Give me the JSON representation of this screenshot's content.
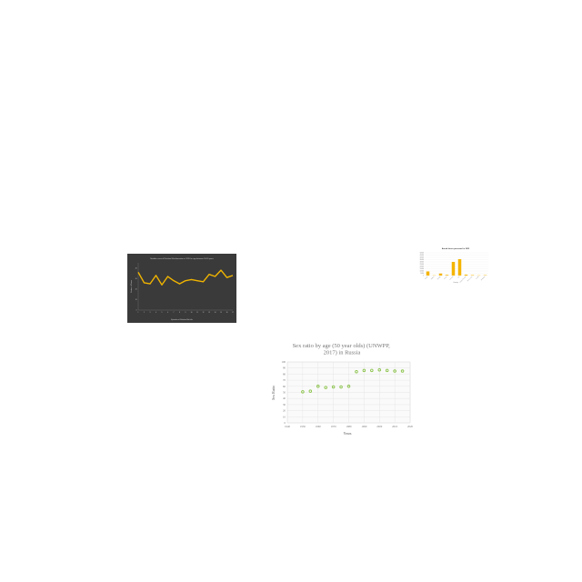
{
  "chart_data": [
    {
      "type": "line",
      "title": "Notable cases of Nutrition Misinformation in 2019 for age between 20-30 years",
      "xlabel": "Episodes of Nutrition Mis-Info",
      "ylabel": "Number of Cases",
      "categories": [
        "1",
        "2",
        "3",
        "4",
        "5",
        "6",
        "7",
        "8",
        "9",
        "10",
        "11",
        "12",
        "13",
        "14",
        "15",
        "16",
        "17"
      ],
      "series": [
        {
          "name": "",
          "values": [
            36,
            26,
            25,
            33,
            24,
            32,
            28,
            25,
            28,
            29,
            28,
            27,
            34,
            32,
            38,
            31,
            33
          ]
        }
      ],
      "ylim": [
        0,
        45
      ],
      "colors": {
        "background": "#3a3a3a",
        "line": "#f0b400",
        "text": "#cfcfcf"
      },
      "grid": false
    },
    {
      "type": "bar",
      "title": "Armed forces personnel in 2012",
      "xlabel": "Country",
      "ylabel": "",
      "categories": [
        "Austria",
        "Belgium",
        "Georgia",
        "Ghana",
        "Indonesia",
        "Italy",
        "Kyrgyz Republic",
        "Sierra Leone",
        "Tunisia",
        "Zimbabwe"
      ],
      "values": [
        90000,
        5000,
        45000,
        15000,
        300000,
        360000,
        20000,
        10000,
        5000,
        8000
      ],
      "ylim": [
        0,
        500000
      ],
      "colors": {
        "bar": "#f4b400",
        "title": "#333333"
      },
      "grid": true
    },
    {
      "type": "scatter",
      "title": "Sex ratio by age (50 year olds) (UNWPP, 2017) in Russia",
      "xlabel": "Years",
      "ylabel": "Sex Ratio",
      "x": [
        1950,
        1955,
        1960,
        1965,
        1970,
        1975,
        1980,
        1985,
        1990,
        1995,
        2000,
        2005,
        2010,
        2015
      ],
      "y": [
        51,
        52,
        60,
        58,
        59,
        59,
        60,
        84,
        86,
        86,
        87,
        86,
        85,
        85
      ],
      "xlim": [
        1940,
        2020
      ],
      "ylim": [
        0,
        100
      ],
      "xticks": [
        1940,
        1950,
        1960,
        1970,
        1980,
        1990,
        2000,
        2010,
        2020
      ],
      "yticks": [
        0,
        10,
        20,
        30,
        40,
        50,
        60,
        70,
        80,
        90,
        100
      ],
      "colors": {
        "point": "#8bc34a",
        "grid": "#e2e2e2"
      },
      "grid": true
    }
  ]
}
